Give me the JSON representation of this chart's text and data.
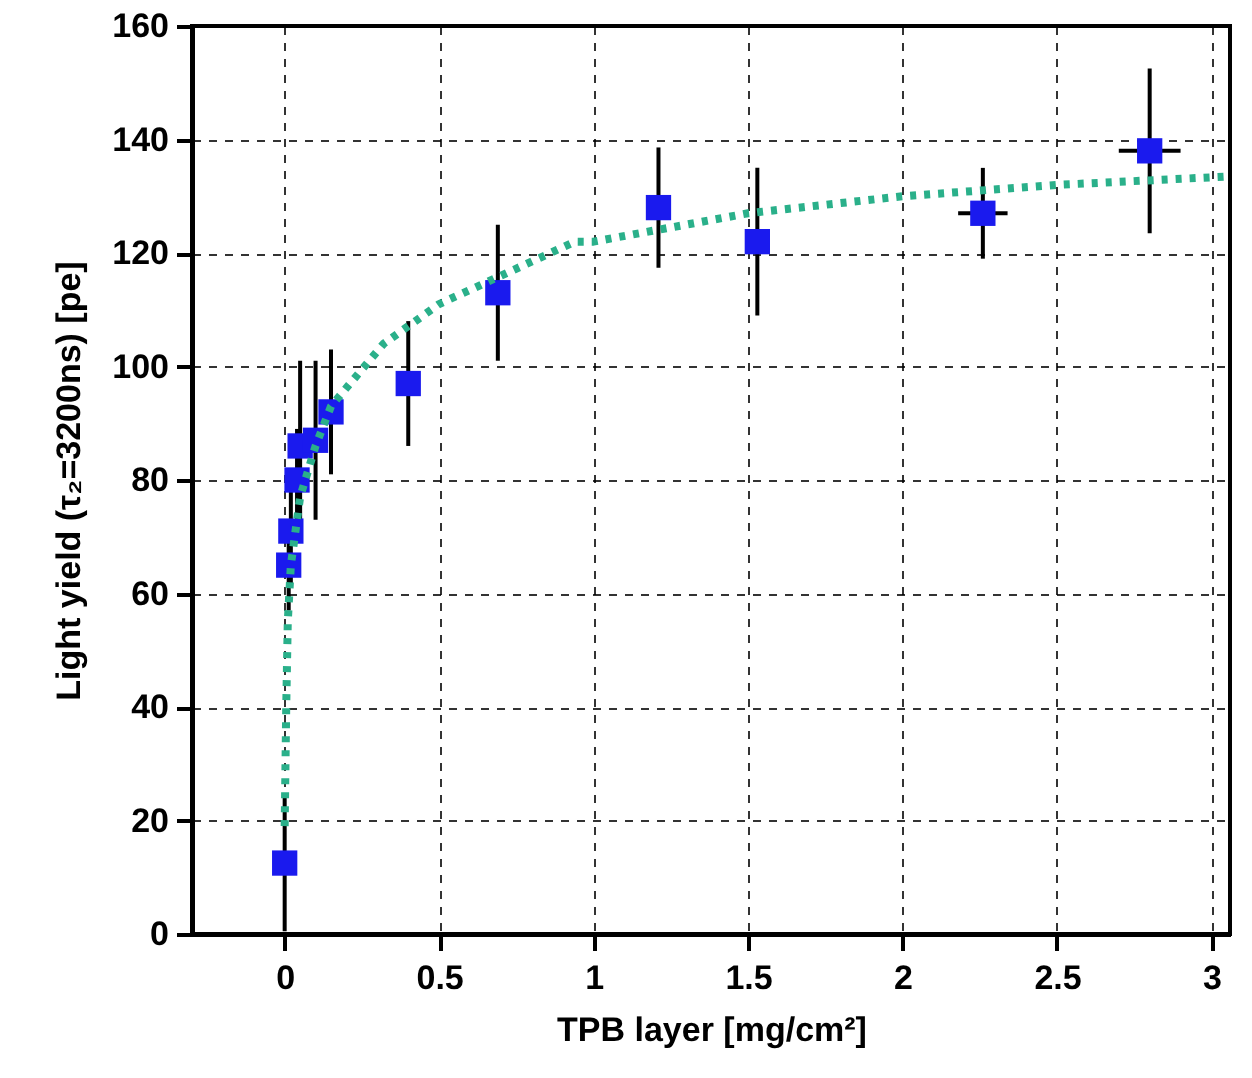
{
  "chart_data": {
    "type": "scatter",
    "xlabel": "TPB layer [mg/cm²]",
    "ylabel": "Light yield (τ₂=3200ns) [pe]",
    "xlim": [
      -0.3,
      3.06
    ],
    "xticks": [
      0,
      0.5,
      1,
      1.5,
      2,
      2.5,
      3
    ],
    "ylim": [
      0,
      160
    ],
    "yticks": [
      0,
      20,
      40,
      60,
      80,
      100,
      120,
      140,
      160
    ],
    "grid": true,
    "series": [
      {
        "color": "#1a1aee",
        "marker": "square",
        "x": [
          0,
          0.013,
          0.02,
          0.04,
          0.05,
          0.1,
          0.15,
          0.4,
          0.69,
          1.21,
          1.53,
          2.26,
          2.8
        ],
        "values": [
          12.5,
          65,
          71,
          80,
          86,
          87,
          92,
          97,
          113,
          128,
          122,
          127,
          138
        ],
        "errors": [
          12,
          8,
          10,
          9,
          15,
          14,
          11,
          11,
          12,
          10.6,
          13,
          8,
          14.5
        ],
        "xerrors": [
          null,
          null,
          null,
          null,
          null,
          null,
          null,
          null,
          null,
          null,
          null,
          0.08,
          0.1
        ]
      },
      {
        "type": "line",
        "color": "#2ab08a",
        "line_style": "dotted",
        "marker": "none",
        "x": [
          0,
          0.005,
          0.01,
          0.02,
          0.05,
          0.1,
          0.15,
          0.32,
          0.5,
          0.94,
          1.0,
          1.5,
          2,
          2.5,
          3.06
        ],
        "values": [
          19,
          40,
          55,
          65,
          77,
          86,
          93,
          104,
          111,
          122,
          122,
          127,
          130,
          132,
          133.5
        ]
      }
    ]
  }
}
